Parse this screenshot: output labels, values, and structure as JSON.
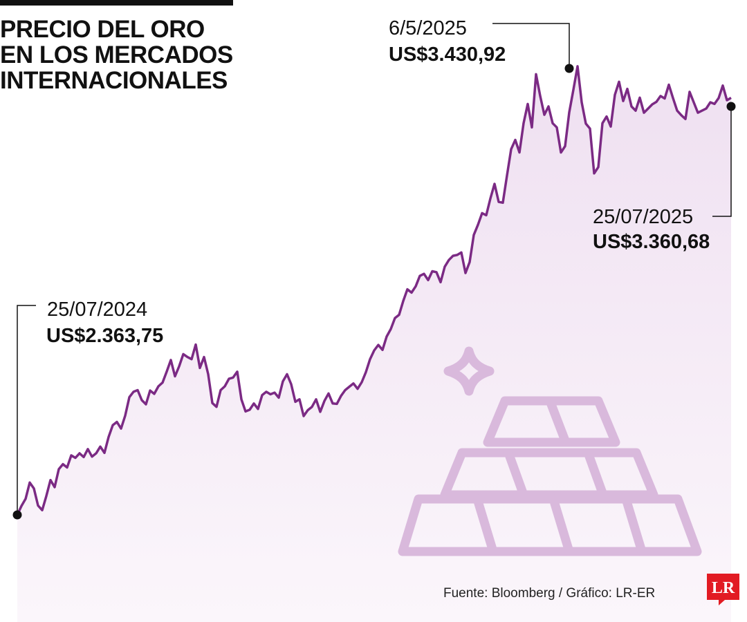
{
  "header": {
    "title_lines": [
      "PRECIO DEL ORO",
      "EN LOS MERCADOS",
      "INTERNACIONALES"
    ]
  },
  "colors": {
    "line": "#7b2a84",
    "area_top": "#efe0f1",
    "area_bottom": "#fbf6fb",
    "icon": "#d9b9dc",
    "logo": "#e21b23"
  },
  "chart_data": {
    "type": "area",
    "title": "PRECIO DEL ORO EN LOS MERCADOS INTERNACIONALES",
    "xlabel": "",
    "ylabel": "",
    "x_range": [
      "25/07/2024",
      "25/07/2025"
    ],
    "ylim": [
      2300,
      3450
    ],
    "grid": false,
    "series": [
      {
        "values": [
          2363.75,
          2385,
          2402,
          2441,
          2427,
          2386,
          2375,
          2409,
          2447,
          2430,
          2473,
          2485,
          2477,
          2506,
          2500,
          2511,
          2502,
          2521,
          2503,
          2511,
          2527,
          2512,
          2550,
          2578,
          2586,
          2570,
          2601,
          2645,
          2658,
          2662,
          2638,
          2628,
          2661,
          2653,
          2671,
          2680,
          2706,
          2734,
          2695,
          2719,
          2748,
          2741,
          2736,
          2771,
          2715,
          2741,
          2700,
          2631,
          2622,
          2662,
          2671,
          2689,
          2692,
          2706,
          2640,
          2611,
          2615,
          2630,
          2617,
          2650,
          2658,
          2652,
          2656,
          2644,
          2683,
          2700,
          2676,
          2634,
          2640,
          2600,
          2614,
          2622,
          2640,
          2610,
          2636,
          2654,
          2630,
          2629,
          2648,
          2662,
          2670,
          2678,
          2665,
          2681,
          2705,
          2736,
          2757,
          2770,
          2758,
          2790,
          2808,
          2834,
          2842,
          2875,
          2903,
          2895,
          2910,
          2935,
          2940,
          2925,
          2946,
          2944,
          2920,
          2957,
          2973,
          2983,
          2985,
          2991,
          2942,
          2968,
          3033,
          3057,
          3085,
          3080,
          3120,
          3155,
          3112,
          3110,
          3175,
          3238,
          3260,
          3230,
          3300,
          3346,
          3290,
          3417,
          3365,
          3320,
          3340,
          3300,
          3290,
          3230,
          3245,
          3326,
          3380,
          3436,
          3350,
          3299,
          3287,
          3180,
          3195,
          3300,
          3316,
          3292,
          3368,
          3399,
          3353,
          3382,
          3340,
          3330,
          3361,
          3325,
          3335,
          3345,
          3351,
          3365,
          3359,
          3392,
          3360,
          3330,
          3319,
          3310,
          3375,
          3350,
          3325,
          3330,
          3335,
          3350,
          3346,
          3360,
          3390,
          3355,
          3360.68
        ]
      }
    ],
    "annotations": [
      {
        "date": "25/07/2024",
        "value": "US$2.363,75"
      },
      {
        "date": "6/5/2025",
        "value": "US$3.430,92"
      },
      {
        "date": "25/07/2025",
        "value": "US$3.360,68"
      }
    ]
  },
  "footer": {
    "source": "Fuente: Bloomberg / Gráfico: LR-ER",
    "logo_text": "LR"
  }
}
